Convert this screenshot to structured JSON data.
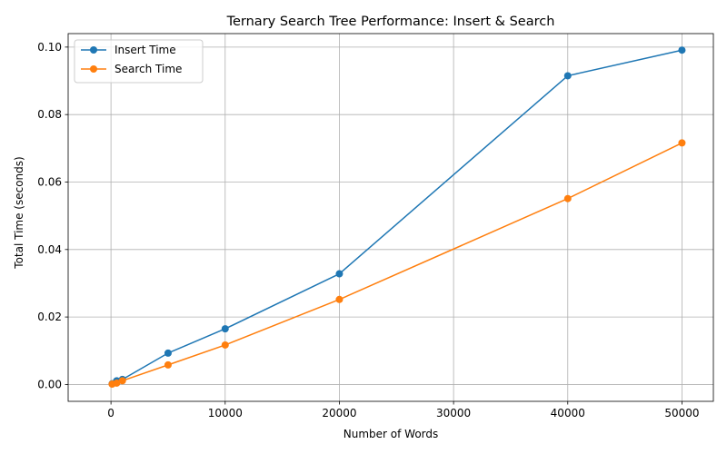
{
  "chart_data": {
    "type": "line",
    "title": "Ternary Search Tree Performance: Insert & Search",
    "xlabel": "Number of Words",
    "ylabel": "Total Time (seconds)",
    "xlim": [
      -3750,
      52750
    ],
    "ylim": [
      -0.005,
      0.104
    ],
    "x_ticks": [
      0,
      10000,
      20000,
      30000,
      40000,
      50000
    ],
    "x_tick_labels": [
      "0",
      "10000",
      "20000",
      "30000",
      "40000",
      "50000"
    ],
    "y_ticks": [
      0.0,
      0.02,
      0.04,
      0.06,
      0.08,
      0.1
    ],
    "y_tick_labels": [
      "0.00",
      "0.02",
      "0.04",
      "0.06",
      "0.08",
      "0.10"
    ],
    "grid": true,
    "legend_position": "upper-left",
    "x": [
      100,
      500,
      1000,
      5000,
      10000,
      20000,
      40000,
      50000
    ],
    "series": [
      {
        "name": "Insert Time",
        "color": "#1f77b4",
        "values": [
          0.0002,
          0.0011,
          0.0015,
          0.0093,
          0.0165,
          0.0328,
          0.0915,
          0.0991
        ]
      },
      {
        "name": "Search Time",
        "color": "#ff7f0e",
        "values": [
          0.0001,
          0.0004,
          0.0011,
          0.0058,
          0.0117,
          0.0252,
          0.0551,
          0.0716
        ]
      }
    ]
  }
}
